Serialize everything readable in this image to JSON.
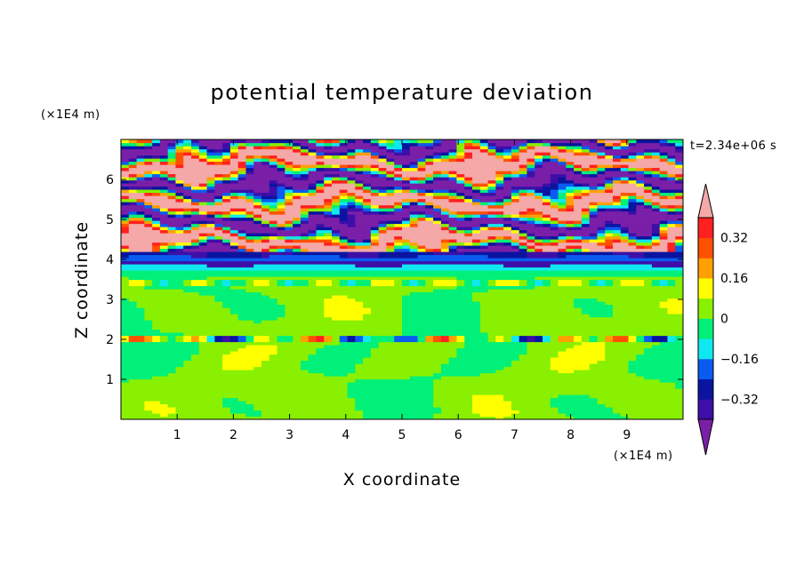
{
  "chart_data": {
    "type": "heatmap",
    "title": "potential temperature deviation",
    "xlabel": "X coordinate",
    "ylabel": "Z coordinate",
    "x_unit": "(×1E4 m)",
    "y_unit": "(×1E4 m)",
    "time_label": "t=2.34e+06 s",
    "xlim": [
      0,
      10
    ],
    "ylim": [
      0,
      7
    ],
    "x_ticks": [
      "1",
      "2",
      "3",
      "4",
      "5",
      "6",
      "7",
      "8",
      "9"
    ],
    "y_ticks": [
      "1",
      "2",
      "3",
      "4",
      "5",
      "6"
    ],
    "x_tick_values": [
      1,
      2,
      3,
      4,
      5,
      6,
      7,
      8,
      9
    ],
    "y_tick_values": [
      1,
      2,
      3,
      4,
      5,
      6
    ],
    "colorbar": {
      "labels": [
        "0.32",
        "0.16",
        "0",
        "−0.16",
        "−0.32"
      ],
      "label_values": [
        0.32,
        0.16,
        0,
        -0.16,
        -0.32
      ],
      "levels": [
        -0.4,
        -0.32,
        -0.24,
        -0.16,
        -0.08,
        0,
        0.08,
        0.16,
        0.24,
        0.32,
        0.4
      ],
      "colors": [
        "#7a1fa8",
        "#3d0fa8",
        "#0a14a0",
        "#0a5cf0",
        "#10e8f0",
        "#00f07a",
        "#88f000",
        "#ffff00",
        "#ffa000",
        "#ff5000",
        "#ff2020",
        "#f4a8a8"
      ],
      "under_color": "#7a1fa8",
      "over_color": "#f4a8a8"
    },
    "field_description_by_height": [
      {
        "z_range": [
          0,
          1.9
        ],
        "dominant": "0 to 0.08 (green/lime mix)"
      },
      {
        "z_range": [
          1.9,
          2.1
        ],
        "dominant": "mixed, local extremes ±0.32"
      },
      {
        "z_range": [
          2.1,
          3.6
        ],
        "dominant": "0 to 0.08"
      },
      {
        "z_range": [
          3.6,
          4.2
        ],
        "dominant": "-0.32 to -0.08 (blue bands)"
      },
      {
        "z_range": [
          4.2,
          7
        ],
        "dominant": "alternating <-0.4 and >0.4 bands"
      }
    ]
  }
}
